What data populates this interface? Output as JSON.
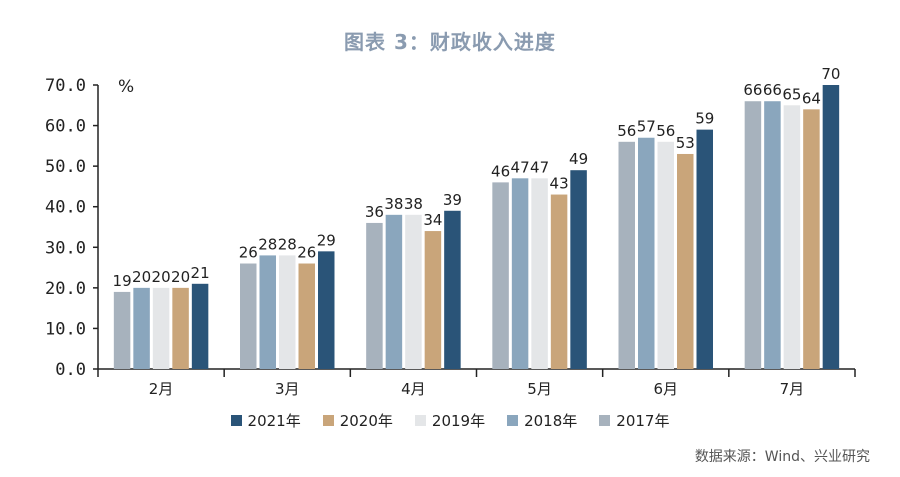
{
  "chart_data": {
    "type": "bar",
    "title": "图表 3：财政收入进度",
    "ylabel": "%",
    "ylim": [
      0,
      70
    ],
    "ytick_step": 10,
    "ytick_labels": [
      "0.0",
      "10.0",
      "20.0",
      "30.0",
      "40.0",
      "50.0",
      "60.0",
      "70.0"
    ],
    "categories": [
      "2月",
      "3月",
      "4月",
      "5月",
      "6月",
      "7月"
    ],
    "series": [
      {
        "name": "2017年",
        "color": "#a7b2bd",
        "values": [
          19,
          26,
          36,
          46,
          56,
          66
        ]
      },
      {
        "name": "2018年",
        "color": "#8aa6bd",
        "values": [
          20,
          28,
          38,
          47,
          57,
          66
        ]
      },
      {
        "name": "2019年",
        "color": "#e4e6e8",
        "values": [
          20,
          28,
          38,
          47,
          56,
          65
        ]
      },
      {
        "name": "2020年",
        "color": "#c9a57a",
        "values": [
          20,
          26,
          34,
          43,
          53,
          64
        ]
      },
      {
        "name": "2021年",
        "color": "#2a5478",
        "values": [
          21,
          29,
          39,
          49,
          59,
          70
        ]
      }
    ],
    "legend": {
      "position": "bottom",
      "order": [
        "2021年",
        "2020年",
        "2019年",
        "2018年",
        "2017年"
      ]
    },
    "grid": false,
    "source": "数据来源：Wind、兴业研究"
  }
}
